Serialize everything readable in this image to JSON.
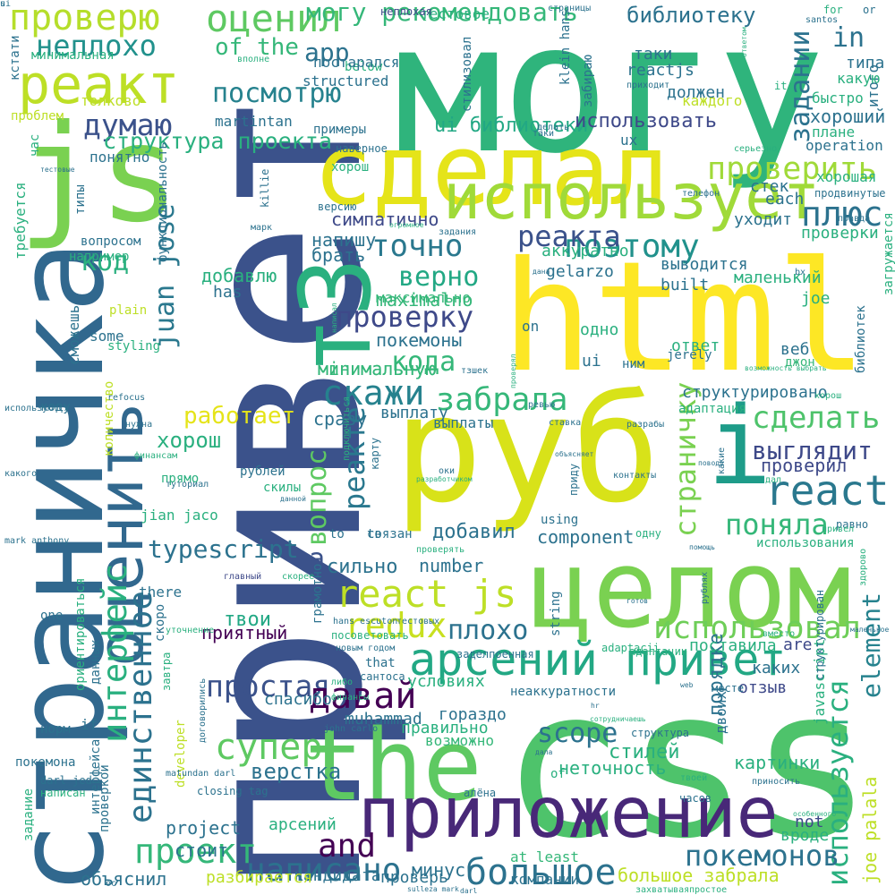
{
  "cloud": {
    "background": "#ffffff",
    "palette": [
      "#3b528b",
      "#21918c",
      "#5ec962",
      "#fde725",
      "#440154",
      "#2c728e",
      "#b5de2b",
      "#31688e",
      "#35b779",
      "#90d743",
      "#472d7b"
    ]
  },
  "words": [
    {
      "text": "привет",
      "color": "#3b528b"
    },
    {
      "text": "могу",
      "color": "#2fb47c"
    },
    {
      "text": "html",
      "color": "#fde725"
    },
    {
      "text": "css",
      "color": "#4ec36b"
    },
    {
      "text": "руб",
      "color": "#d8e219"
    },
    {
      "text": "страничка",
      "color": "#31688e"
    },
    {
      "text": "целом",
      "color": "#7ad151"
    },
    {
      "text": "сделал",
      "color": "#e5e419"
    },
    {
      "text": "js",
      "color": "#7ad151"
    },
    {
      "text": "the",
      "color": "#5ec962"
    },
    {
      "text": "приложение",
      "color": "#482878"
    },
    {
      "text": "т3",
      "color": "#2ab07f"
    },
    {
      "text": "оценить",
      "color": "#31688e"
    },
    {
      "text": "использует",
      "color": "#a0da39"
    },
    {
      "text": "реакт",
      "color": "#bddf26"
    },
    {
      "text": "арсений привет",
      "color": "#22a884"
    },
    {
      "text": "i",
      "color": "#1e9c89"
    },
    {
      "text": "react",
      "color": "#2a788e"
    },
    {
      "text": "проверю",
      "color": "#b5de2b"
    },
    {
      "text": "оценил",
      "color": "#5ec962"
    },
    {
      "text": "могу рекомендовать",
      "color": "#35b779"
    },
    {
      "text": "неплохо",
      "color": "#21918c"
    },
    {
      "text": "посмотрю",
      "color": "#26828e"
    },
    {
      "text": "думаю",
      "color": "#3b528b"
    },
    {
      "text": "структура проекта",
      "color": "#2ab07f"
    },
    {
      "text": "проверить",
      "color": "#a0da39"
    },
    {
      "text": "плюс",
      "color": "#2c728e"
    },
    {
      "text": "точно",
      "color": "#2a788e"
    },
    {
      "text": "поэтому",
      "color": "#21918c"
    },
    {
      "text": "реакта",
      "color": "#3b528b"
    },
    {
      "text": "проверку",
      "color": "#3e4989"
    },
    {
      "text": "верно",
      "color": "#22a884"
    },
    {
      "text": "код",
      "color": "#2ab07f"
    },
    {
      "text": "juan jose",
      "color": "#2a788e"
    },
    {
      "text": "скажи",
      "color": "#26828e"
    },
    {
      "text": "забрала",
      "color": "#35b779"
    },
    {
      "text": "сделать",
      "color": "#4ec36b"
    },
    {
      "text": "выглядит",
      "color": "#3e4989"
    },
    {
      "text": "поняла",
      "color": "#35b779"
    },
    {
      "text": "typescript",
      "color": "#2c728e"
    },
    {
      "text": "react js",
      "color": "#bddf26"
    },
    {
      "text": "redux",
      "color": "#c8e020"
    },
    {
      "text": "интерфейс",
      "color": "#2ab07f"
    },
    {
      "text": "единственное",
      "color": "#2c728e"
    },
    {
      "text": "простая",
      "color": "#3b528b"
    },
    {
      "text": "давай",
      "color": "#440154"
    },
    {
      "text": "супер",
      "color": "#5ec962"
    },
    {
      "text": "проект",
      "color": "#35b779"
    },
    {
      "text": "используется",
      "color": "#2ab07f"
    },
    {
      "text": "использовал",
      "color": "#6ece58"
    },
    {
      "text": "element",
      "color": "#26828e"
    },
    {
      "text": "большое",
      "color": "#2c728e"
    },
    {
      "text": "покемонов",
      "color": "#2c728e"
    },
    {
      "text": "написано",
      "color": "#2c728e"
    },
    {
      "text": "and",
      "color": "#440154"
    },
    {
      "text": "scope",
      "color": "#2c728e"
    },
    {
      "text": "вопрос",
      "color": "#5ec962"
    },
    {
      "text": "реакте",
      "color": "#2a788e"
    },
    {
      "text": "работает",
      "color": "#e5e419"
    },
    {
      "text": "a",
      "color": "#3b528b"
    },
    {
      "text": "задании",
      "color": "#2c728e"
    },
    {
      "text": "in",
      "color": "#2c728e"
    },
    {
      "text": "библиотеку",
      "color": "#2c728e"
    },
    {
      "text": "app",
      "color": "#2c728e"
    },
    {
      "text": "of the",
      "color": "#35b779"
    },
    {
      "text": "страничку",
      "color": "#7ad151"
    },
    {
      "text": "кода",
      "color": "#35b779"
    },
    {
      "text": "плохо",
      "color": "#2c728e"
    },
    {
      "text": "верстка",
      "color": "#2c728e"
    },
    {
      "text": "картинки",
      "color": "#2ab07f"
    },
    {
      "text": "порядке",
      "color": "#2c728e"
    },
    {
      "text": "javascript",
      "color": "#2ab07f"
    },
    {
      "text": "joe palala",
      "color": "#bddf26"
    },
    {
      "text": "component",
      "color": "#2c728e"
    },
    {
      "text": "ui библиотеки",
      "color": "#22a884"
    },
    {
      "text": "использовать",
      "color": "#3e4989"
    },
    {
      "text": "хороший",
      "color": "#2c728e"
    },
    {
      "text": "maximalno",
      "color": "#35b779"
    },
    {
      "text": "максимально",
      "color": "#35b779"
    },
    {
      "text": "покемоны",
      "color": "#2c728e"
    },
    {
      "text": "мinимальную",
      "color": "#35b779"
    },
    {
      "text": "минимальную",
      "color": "#35b779"
    },
    {
      "text": "стилей",
      "color": "#2ab07f"
    },
    {
      "text": "неточность",
      "color": "#2ab07f"
    },
    {
      "text": "симпатично",
      "color": "#3e4989"
    },
    {
      "text": "напишу",
      "color": "#2c728e"
    },
    {
      "text": "брать",
      "color": "#2c728e"
    },
    {
      "text": "добавлю",
      "color": "#2ab07f"
    },
    {
      "text": "has",
      "color": "#2c728e"
    },
    {
      "text": "сразу",
      "color": "#2c728e"
    },
    {
      "text": "выплату",
      "color": "#2c728e"
    },
    {
      "text": "сильно",
      "color": "#2c728e"
    },
    {
      "text": "number",
      "color": "#2c728e"
    },
    {
      "text": "добавил",
      "color": "#2c728e"
    },
    {
      "text": "приятный",
      "color": "#440154"
    },
    {
      "text": "твои",
      "color": "#22a884"
    },
    {
      "text": "спасибо",
      "color": "#2c728e"
    },
    {
      "text": "muhammad",
      "color": "#2c728e"
    },
    {
      "text": "условиях",
      "color": "#2ab07f"
    },
    {
      "text": "гораздо",
      "color": "#2c728e"
    },
    {
      "text": "правильно",
      "color": "#2ab07f"
    },
    {
      "text": "возможно",
      "color": "#35b779"
    },
    {
      "text": "стоит",
      "color": "#2c728e"
    },
    {
      "text": "арсений",
      "color": "#2ab07f"
    },
    {
      "text": "project",
      "color": "#2c728e"
    },
    {
      "text": "кандидата",
      "color": "#2c728e"
    },
    {
      "text": "минус",
      "color": "#2c728e"
    },
    {
      "text": "большое забрала",
      "color": "#bddf26"
    },
    {
      "text": "at least",
      "color": "#35b779"
    },
    {
      "text": "компании",
      "color": "#2c728e"
    },
    {
      "text": "проверь",
      "color": "#2c728e"
    },
    {
      "text": "объяснил",
      "color": "#2c728e"
    },
    {
      "text": "разбирается",
      "color": "#bddf26"
    },
    {
      "text": "вроде",
      "color": "#2ab07f"
    },
    {
      "text": "not",
      "color": "#3e4989"
    },
    {
      "text": "отзыв",
      "color": "#3e4989"
    },
    {
      "text": "двоих",
      "color": "#2c728e"
    },
    {
      "text": "каких",
      "color": "#2c728e"
    },
    {
      "text": "are",
      "color": "#3e4989"
    },
    {
      "text": "поставила",
      "color": "#2ab07f"
    },
    {
      "text": "ответ",
      "color": "#2ab07f"
    },
    {
      "text": "веб",
      "color": "#2c728e"
    },
    {
      "text": "джон",
      "color": "#35b779"
    },
    {
      "text": "одно",
      "color": "#2ab07f"
    },
    {
      "text": "on",
      "color": "#2c728e"
    },
    {
      "text": "ui",
      "color": "#2c728e"
    },
    {
      "text": "структурировано",
      "color": "#2c728e"
    },
    {
      "text": "адаптация",
      "color": "#2ab07f"
    },
    {
      "text": "проверил",
      "color": "#3e4989"
    },
    {
      "text": "jerely",
      "color": "#2c728e"
    },
    {
      "text": "маленький",
      "color": "#2ab07f"
    },
    {
      "text": "joe",
      "color": "#2ab07f"
    },
    {
      "text": "built",
      "color": "#2c728e"
    },
    {
      "text": "выводится",
      "color": "#2c728e"
    },
    {
      "text": "gelarzo",
      "color": "#2c728e"
    },
    {
      "text": "аккуратно",
      "color": "#2ab07f"
    },
    {
      "text": "уходит",
      "color": "#2c728e"
    },
    {
      "text": "each",
      "color": "#2c728e"
    },
    {
      "text": "стек",
      "color": "#2c728e"
    },
    {
      "text": "проверки",
      "color": "#2ab07f"
    },
    {
      "text": "хорошая",
      "color": "#2ab07f"
    },
    {
      "text": "operation",
      "color": "#2c728e"
    },
    {
      "text": "плане",
      "color": "#2ab07f"
    },
    {
      "text": "быстро",
      "color": "#2ab07f"
    },
    {
      "text": "итого",
      "color": "#2c728e"
    },
    {
      "text": "какую",
      "color": "#2ab07f"
    },
    {
      "text": "типа",
      "color": "#2c728e"
    },
    {
      "text": "таки",
      "color": "#2c728e"
    },
    {
      "text": "reactjs",
      "color": "#2c728e"
    },
    {
      "text": "должен",
      "color": "#2c728e"
    },
    {
      "text": "каждого",
      "color": "#bddf26"
    },
    {
      "text": "structured",
      "color": "#2c728e"
    },
    {
      "text": "below",
      "color": "#2ab07f"
    },
    {
      "text": "постарался",
      "color": "#2c728e"
    },
    {
      "text": "тестовое",
      "color": "#2ab07f"
    },
    {
      "text": "неплохая",
      "color": "#3e4989"
    },
    {
      "text": "стилизовал",
      "color": "#2c728e"
    },
    {
      "text": "martintan",
      "color": "#2c728e"
    },
    {
      "text": "примеры",
      "color": "#2c728e"
    },
    {
      "text": "хорош",
      "color": "#2ab07f"
    },
    {
      "text": "наверное",
      "color": "#2c728e"
    },
    {
      "text": "понятно",
      "color": "#2c728e"
    },
    {
      "text": "толково",
      "color": "#bddf26"
    },
    {
      "text": "проблем",
      "color": "#bddf26"
    },
    {
      "text": "минимальная",
      "color": "#2ab07f"
    },
    {
      "text": "кстати",
      "color": "#2c728e"
    },
    {
      "text": "час",
      "color": "#2ab07f"
    },
    {
      "text": "типы",
      "color": "#2c728e"
    },
    {
      "text": "требуется",
      "color": "#2ab07f"
    },
    {
      "text": "функциональность",
      "color": "#2c728e"
    },
    {
      "text": "killie",
      "color": "#2c728e"
    },
    {
      "text": "марк",
      "color": "#2c728e"
    },
    {
      "text": "вопросом",
      "color": "#2c728e"
    },
    {
      "text": "например",
      "color": "#2ab07f"
    },
    {
      "text": "plain",
      "color": "#bddf26"
    },
    {
      "text": "some",
      "color": "#2c728e"
    },
    {
      "text": "сможешь",
      "color": "#2c728e"
    },
    {
      "text": "styling",
      "color": "#2ab07f"
    },
    {
      "text": "количество",
      "color": "#bddf26"
    },
    {
      "text": "коду",
      "color": "#2c728e"
    },
    {
      "text": "refocus",
      "color": "#2c728e"
    },
    {
      "text": "прямо",
      "color": "#2ab07f"
    },
    {
      "text": "рублей",
      "color": "#2c728e"
    },
    {
      "text": "скилы",
      "color": "#2ab07f"
    },
    {
      "text": "jian jaco",
      "color": "#2ab07f"
    },
    {
      "text": "there",
      "color": "#2c728e"
    },
    {
      "text": "скоро",
      "color": "#2c728e"
    },
    {
      "text": "one",
      "color": "#2c728e"
    },
    {
      "text": "ориентироваться",
      "color": "#2ab07f"
    },
    {
      "text": "данных",
      "color": "#2c728e"
    },
    {
      "text": "завтра",
      "color": "#2ab07f"
    },
    {
      "text": "if",
      "color": "#2c728e"
    },
    {
      "text": "норм",
      "color": "#2c728e"
    },
    {
      "text": "developer",
      "color": "#bddf26"
    },
    {
      "text": "покемона",
      "color": "#2c728e"
    },
    {
      "text": "интерфейса",
      "color": "#2c728e"
    },
    {
      "text": "задание",
      "color": "#2ab07f"
    },
    {
      "text": "проверкой",
      "color": "#2c728e"
    },
    {
      "text": "closing tag",
      "color": "#2c728e"
    },
    {
      "text": "главный",
      "color": "#3e4989"
    },
    {
      "text": "грамотно",
      "color": "#2c728e"
    },
    {
      "text": "посоветовать",
      "color": "#2ab07f"
    },
    {
      "text": "заделпоенная",
      "color": "#2c728e"
    },
    {
      "text": "неаккуратности",
      "color": "#2c728e"
    },
    {
      "text": "сантоса",
      "color": "#2c728e"
    },
    {
      "text": "that",
      "color": "#2c728e"
    },
    {
      "text": "string",
      "color": "#2c728e"
    },
    {
      "text": "using",
      "color": "#2c728e"
    },
    {
      "text": "одну",
      "color": "#2ab07f"
    },
    {
      "text": "равно",
      "color": "#2c728e"
    },
    {
      "text": "использования",
      "color": "#2ab07f"
    },
    {
      "text": "приду",
      "color": "#2c728e"
    },
    {
      "text": "ревью",
      "color": "#2c728e"
    },
    {
      "text": "ставка",
      "color": "#2c728e"
    },
    {
      "text": "разрабы",
      "color": "#2c728e"
    },
    {
      "text": "библиотек",
      "color": "#2c728e"
    },
    {
      "text": "загружается",
      "color": "#2ab07f"
    },
    {
      "text": "структурирован",
      "color": "#2c728e"
    },
    {
      "text": "часов",
      "color": "#2c728e"
    },
    {
      "text": "алёна",
      "color": "#2c728e"
    },
    {
      "text": "of",
      "color": "#2ab07f"
    },
    {
      "text": "структура",
      "color": "#2c728e"
    },
    {
      "text": "месте",
      "color": "#2c728e"
    },
    {
      "text": "adaptacii",
      "color": "#2ab07f"
    },
    {
      "text": "адаптации",
      "color": "#2ab07f"
    },
    {
      "text": "вместо",
      "color": "#2ab07f"
    },
    {
      "text": "bx",
      "color": "#2c728e"
    },
    {
      "text": "ux",
      "color": "#2c728e"
    },
    {
      "text": "for",
      "color": "#2ab07f"
    },
    {
      "text": "or",
      "color": "#2c728e"
    },
    {
      "text": "it",
      "color": "#2ab07f"
    },
    {
      "text": "телефон",
      "color": "#2c728e"
    },
    {
      "text": "серьезно",
      "color": "#2ab07f"
    },
    {
      "text": "таки",
      "color": "#2c728e"
    },
    {
      "text": "хорош",
      "color": "#2ab07f"
    },
    {
      "text": "santos",
      "color": "#2c728e"
    },
    {
      "text": "выплаты",
      "color": "#2c728e"
    },
    {
      "text": "тзшек",
      "color": "#2c728e"
    },
    {
      "text": "привел",
      "color": "#2ab07f"
    },
    {
      "text": "скорее",
      "color": "#2ab07f"
    },
    {
      "text": "готов",
      "color": "#2c728e"
    },
    {
      "text": "рублях",
      "color": "#2c728e"
    },
    {
      "text": "связан",
      "color": "#2c728e"
    },
    {
      "text": "tо",
      "color": "#2c728e"
    },
    {
      "text": "to",
      "color": "#2c728e"
    },
    {
      "text": "ос",
      "color": "#2c728e"
    },
    {
      "text": "уточнение",
      "color": "#2ab07f"
    },
    {
      "text": "либо",
      "color": "#2ab07f"
    },
    {
      "text": "john carlo",
      "color": "#2c728e"
    },
    {
      "text": "новым годом",
      "color": "#2c728e"
    },
    {
      "text": "hans escuton",
      "color": "#2c728e"
    },
    {
      "text": "тестовых",
      "color": "#2c728e"
    },
    {
      "text": "matundan darl",
      "color": "#2c728e"
    },
    {
      "text": "darl jed",
      "color": "#2c728e"
    },
    {
      "text": "написан",
      "color": "#2ab07f"
    },
    {
      "text": "какого",
      "color": "#2c728e"
    },
    {
      "text": "mark anthony",
      "color": "#2c728e"
    },
    {
      "text": "туториал",
      "color": "#2c728e"
    },
    {
      "text": "финансам",
      "color": "#2ab07f"
    },
    {
      "text": "нужна",
      "color": "#2c728e"
    },
    {
      "text": "используются",
      "color": "#2c728e"
    },
    {
      "text": "подключиться",
      "color": "#2ab07f"
    },
    {
      "text": "карту",
      "color": "#2c728e"
    },
    {
      "text": "разработчиком",
      "color": "#2ab07f"
    },
    {
      "text": "проверять",
      "color": "#2ab07f"
    },
    {
      "text": "контакты",
      "color": "#2c728e"
    },
    {
      "text": "объясняет",
      "color": "#2c728e"
    },
    {
      "text": "поводу",
      "color": "#2c728e"
    },
    {
      "text": "какие",
      "color": "#2c728e"
    },
    {
      "text": "помощь",
      "color": "#2c728e"
    },
    {
      "text": "дал",
      "color": "#2ab07f"
    },
    {
      "text": "оки",
      "color": "#2c728e"
    },
    {
      "text": "маленькое",
      "color": "#2c728e"
    },
    {
      "text": "твоей",
      "color": "#2ab07f"
    },
    {
      "text": "приносить",
      "color": "#2c728e"
    },
    {
      "text": "здорово",
      "color": "#2ab07f"
    },
    {
      "text": "возможность выбрать",
      "color": "#2ab07f"
    },
    {
      "text": "особенного",
      "color": "#2ab07f"
    },
    {
      "text": "дала",
      "color": "#2c728e"
    },
    {
      "text": "hr",
      "color": "#2c728e"
    },
    {
      "text": "сотрудничаешь",
      "color": "#2ab07f"
    },
    {
      "text": "web",
      "color": "#2c728e"
    },
    {
      "text": "захватывая",
      "color": "#2ab07f"
    },
    {
      "text": "простое",
      "color": "#2ab07f"
    },
    {
      "text": "darl",
      "color": "#2c728e"
    },
    {
      "text": "sulleza mark",
      "color": "#2c728e"
    },
    {
      "text": "договорились",
      "color": "#2c728e"
    },
    {
      "text": "финансы",
      "color": "#2ab07f"
    },
    {
      "text": "данной",
      "color": "#2c728e"
    },
    {
      "text": "написал",
      "color": "#2ab07f"
    },
    {
      "text": "дана",
      "color": "#2c728e"
    },
    {
      "text": "задания",
      "color": "#2c728e"
    },
    {
      "text": "огромное",
      "color": "#2ab07f"
    },
    {
      "text": "проверял",
      "color": "#2ab07f"
    },
    {
      "text": "делать",
      "color": "#2c728e"
    },
    {
      "text": "приходит",
      "color": "#2c728e"
    },
    {
      "text": "забираю",
      "color": "#2c728e"
    },
    {
      "text": "klein hans",
      "color": "#2c728e"
    },
    {
      "text": "страницы",
      "color": "#2c728e"
    },
    {
      "text": "ответом",
      "color": "#2ab07f"
    },
    {
      "text": "правда",
      "color": "#2c728e"
    },
    {
      "text": "тестовые",
      "color": "#2c728e"
    },
    {
      "text": "вполне",
      "color": "#2ab07f"
    },
    {
      "text": "версию",
      "color": "#2c728e"
    },
    {
      "text": "продвинутые",
      "color": "#2c728e"
    },
    {
      "text": "ним",
      "color": "#2c728e"
    },
    {
      "text": "хорош",
      "color": "#2ab07f"
    },
    {
      "text": "ui",
      "color": "#2c728e"
    },
    {
      "text": "s",
      "color": "#2c728e"
    }
  ]
}
